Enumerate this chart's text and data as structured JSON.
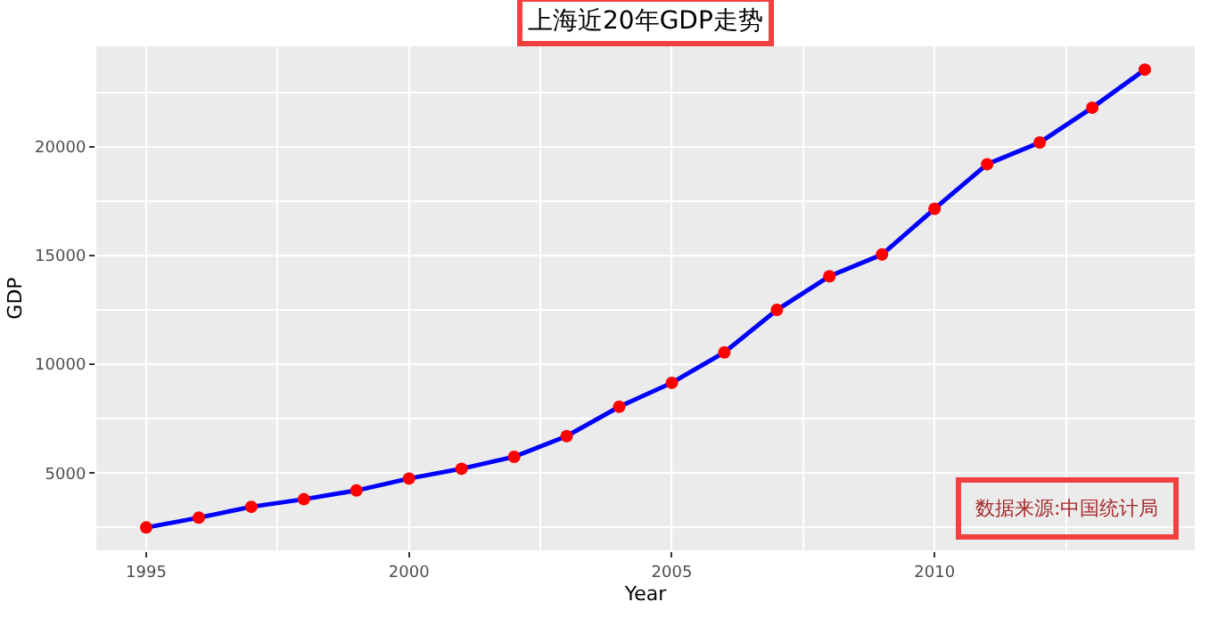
{
  "chart_data": {
    "type": "line",
    "title": "上海近20年GDP走势",
    "xlabel": "Year",
    "ylabel": "GDP",
    "x": [
      1995,
      1996,
      1997,
      1998,
      1999,
      2000,
      2001,
      2002,
      2003,
      2004,
      2005,
      2006,
      2007,
      2008,
      2009,
      2010,
      2011,
      2012,
      2013,
      2014
    ],
    "series": [
      {
        "color": "#0000ff",
        "colors": [
          "#ff0000",
          "#ff0000",
          "#ff0000",
          "#ff0000",
          "#ff0000",
          "#ff0000",
          "#ff0000",
          "#ff0000",
          "#ff0000",
          "#ff0000",
          "#ff0000",
          "#ff0000",
          "#ff0000",
          "#ff0000",
          "#ff0000",
          "#ff0000",
          "#ff0000",
          "#ff0000",
          "#ff0000",
          "#ff0000"
        ],
        "values": [
          2500,
          2950,
          3450,
          3800,
          4200,
          4750,
          5200,
          5750,
          6700,
          8050,
          9150,
          10550,
          12500,
          14050,
          15050,
          17150,
          19200,
          20200,
          21800,
          23550
        ]
      }
    ],
    "xlim": [
      1994.05,
      2014.95
    ],
    "xticks": [
      1995,
      2000,
      2005,
      2010
    ],
    "ylim": [
      1450,
      24620
    ],
    "yticks": [
      5000,
      10000,
      15000,
      20000
    ],
    "grid": true,
    "marker": "circle",
    "line_style": "solid",
    "annotations": [
      "数据来源:中国统计局"
    ]
  }
}
